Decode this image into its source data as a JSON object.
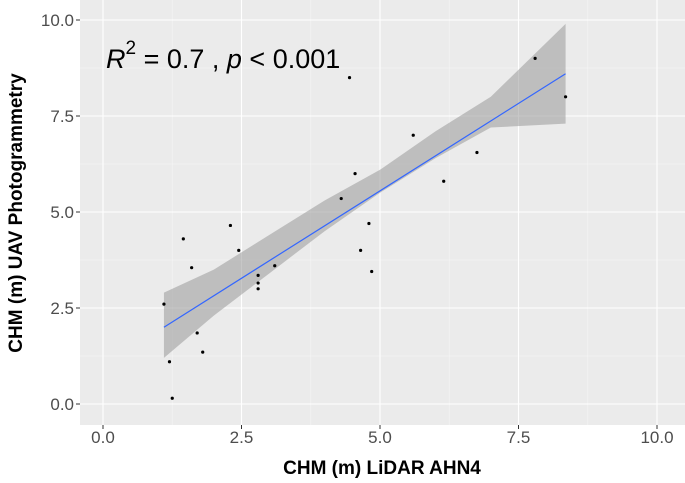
{
  "chart_data": {
    "type": "scatter",
    "xlabel": "CHM (m) LiDAR AHN4",
    "ylabel": "CHM (m) UAV Photogrammetry",
    "xlim": [
      -0.5,
      10.2
    ],
    "ylim": [
      -0.4,
      10.2
    ],
    "x_ticks": [
      0.0,
      2.5,
      5.0,
      7.5,
      10.0
    ],
    "y_ticks": [
      0.0,
      2.5,
      5.0,
      7.5,
      10.0
    ],
    "x_tick_labels": [
      "0.0",
      "2.5",
      "5.0",
      "7.5",
      "10.0"
    ],
    "y_tick_labels": [
      "0.0",
      "2.5",
      "5.0",
      "7.5",
      "10.0"
    ],
    "grid": true,
    "annotation": {
      "r_symbol": "R",
      "r_superscript": "2",
      "r_value": " = 0.7 , ",
      "p_symbol": "p",
      "p_value": " < 0.001"
    },
    "points": [
      {
        "x": 1.1,
        "y": 2.6
      },
      {
        "x": 1.2,
        "y": 1.1
      },
      {
        "x": 1.25,
        "y": 0.15
      },
      {
        "x": 1.45,
        "y": 4.3
      },
      {
        "x": 1.6,
        "y": 3.55
      },
      {
        "x": 1.7,
        "y": 1.85
      },
      {
        "x": 1.8,
        "y": 1.35
      },
      {
        "x": 2.3,
        "y": 4.65
      },
      {
        "x": 2.45,
        "y": 4.0
      },
      {
        "x": 2.8,
        "y": 3.35
      },
      {
        "x": 2.8,
        "y": 3.15
      },
      {
        "x": 2.8,
        "y": 3.0
      },
      {
        "x": 3.1,
        "y": 3.6
      },
      {
        "x": 4.3,
        "y": 5.35
      },
      {
        "x": 4.45,
        "y": 8.5
      },
      {
        "x": 4.55,
        "y": 6.0
      },
      {
        "x": 4.65,
        "y": 4.0
      },
      {
        "x": 4.8,
        "y": 4.7
      },
      {
        "x": 4.85,
        "y": 3.45
      },
      {
        "x": 5.6,
        "y": 7.0
      },
      {
        "x": 6.15,
        "y": 5.8
      },
      {
        "x": 6.75,
        "y": 6.55
      },
      {
        "x": 7.8,
        "y": 9.0
      },
      {
        "x": 8.35,
        "y": 8.0
      }
    ],
    "fit_line": {
      "x": [
        1.1,
        8.35
      ],
      "y": [
        2.0,
        8.6
      ],
      "color": "#3366ff"
    },
    "confidence_band": {
      "x": [
        1.1,
        2.0,
        3.0,
        4.0,
        5.0,
        6.0,
        7.0,
        8.35
      ],
      "lower": [
        1.2,
        2.3,
        3.4,
        4.5,
        5.5,
        6.4,
        7.2,
        7.3
      ],
      "upper": [
        2.9,
        3.5,
        4.4,
        5.3,
        6.1,
        7.1,
        8.0,
        9.9
      ],
      "color": "#999999"
    },
    "colors": {
      "panel_background": "#ebebeb",
      "grid_major": "#ffffff",
      "grid_minor": "#f5f5f5",
      "point": "#000000"
    }
  }
}
